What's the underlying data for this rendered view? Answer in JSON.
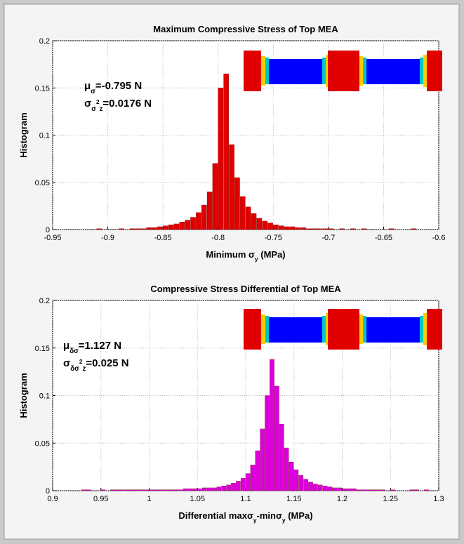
{
  "chart_data": [
    {
      "type": "histogram",
      "title": "Maximum Compressive Stress of Top MEA",
      "xlabel": [
        {
          "text": "Minimum σ"
        },
        {
          "sub": "y"
        },
        {
          "text": " (MPa)"
        }
      ],
      "ylabel": "Histogram",
      "annotations": [
        [
          {
            "text": "μ"
          },
          {
            "sub": "σ"
          },
          {
            "text": "=-0.795 N"
          }
        ],
        [
          {
            "text": "σ"
          },
          {
            "sub": "σ"
          },
          {
            "sup": "2"
          },
          {
            "sub": "z"
          },
          {
            "text": "=0.0176 N"
          }
        ]
      ],
      "bins": [
        -0.91,
        -0.905,
        -0.9,
        -0.895,
        -0.89,
        -0.885,
        -0.88,
        -0.875,
        -0.87,
        -0.865,
        -0.86,
        -0.855,
        -0.85,
        -0.845,
        -0.84,
        -0.835,
        -0.83,
        -0.825,
        -0.82,
        -0.815,
        -0.81,
        -0.805,
        -0.8,
        -0.795,
        -0.79,
        -0.785,
        -0.78,
        -0.775,
        -0.77,
        -0.765,
        -0.76,
        -0.755,
        -0.75,
        -0.745,
        -0.74,
        -0.735,
        -0.73,
        -0.725,
        -0.72,
        -0.715,
        -0.71,
        -0.705,
        -0.7,
        -0.695,
        -0.69,
        -0.685,
        -0.68,
        -0.675,
        -0.67,
        -0.665,
        -0.66,
        -0.655,
        -0.65,
        -0.645,
        -0.64,
        -0.635,
        -0.63,
        -0.625,
        -0.62
      ],
      "values": [
        0.001,
        0,
        0,
        0,
        0.001,
        0,
        0.001,
        0.001,
        0.001,
        0.002,
        0.002,
        0.003,
        0.004,
        0.005,
        0.006,
        0.008,
        0.01,
        0.013,
        0.018,
        0.026,
        0.04,
        0.07,
        0.15,
        0.165,
        0.09,
        0.055,
        0.035,
        0.024,
        0.017,
        0.012,
        0.009,
        0.007,
        0.005,
        0.004,
        0.003,
        0.003,
        0.002,
        0.002,
        0.001,
        0.001,
        0.001,
        0.001,
        0.001,
        0,
        0.001,
        0,
        0.001,
        0,
        0.001,
        0,
        0,
        0,
        0,
        0.001,
        0,
        0,
        0,
        0.001
      ],
      "color": "#e00000",
      "xlim": [
        -0.95,
        -0.6
      ],
      "xticks": [
        -0.95,
        -0.9,
        -0.85,
        -0.8,
        -0.75,
        -0.7,
        -0.65,
        -0.6
      ],
      "ylim": [
        0,
        0.2
      ],
      "yticks": [
        0,
        0.05,
        0.1,
        0.15,
        0.2
      ],
      "grid": true
    },
    {
      "type": "histogram",
      "title": "Compressive Stress Differential of Top MEA",
      "xlabel": [
        {
          "text": "Differential maxσ"
        },
        {
          "sub": "y"
        },
        {
          "text": "-minσ"
        },
        {
          "sub": "y"
        },
        {
          "text": " (MPa)"
        }
      ],
      "ylabel": "Histogram",
      "annotations": [
        [
          {
            "text": "μ"
          },
          {
            "sub": "δσ"
          },
          {
            "text": "=1.127 N"
          }
        ],
        [
          {
            "text": "σ"
          },
          {
            "sub": "δσ"
          },
          {
            "sup": "2"
          },
          {
            "sub": "z"
          },
          {
            "text": "=0.025 N"
          }
        ]
      ],
      "bins": [
        0.93,
        0.935,
        0.94,
        0.945,
        0.95,
        0.955,
        0.96,
        0.965,
        0.97,
        0.975,
        0.98,
        0.985,
        0.99,
        0.995,
        1.0,
        1.005,
        1.01,
        1.015,
        1.02,
        1.025,
        1.03,
        1.035,
        1.04,
        1.045,
        1.05,
        1.055,
        1.06,
        1.065,
        1.07,
        1.075,
        1.08,
        1.085,
        1.09,
        1.095,
        1.1,
        1.105,
        1.11,
        1.115,
        1.12,
        1.125,
        1.13,
        1.135,
        1.14,
        1.145,
        1.15,
        1.155,
        1.16,
        1.165,
        1.17,
        1.175,
        1.18,
        1.185,
        1.19,
        1.195,
        1.2,
        1.205,
        1.21,
        1.215,
        1.22,
        1.225,
        1.23,
        1.235,
        1.24,
        1.245,
        1.25,
        1.255,
        1.26,
        1.265,
        1.27,
        1.275,
        1.28,
        1.285,
        1.29
      ],
      "values": [
        0.001,
        0.001,
        0,
        0,
        0.001,
        0,
        0.001,
        0.001,
        0.001,
        0.001,
        0.001,
        0.001,
        0.001,
        0.001,
        0.001,
        0.001,
        0.001,
        0.001,
        0.001,
        0.001,
        0.001,
        0.002,
        0.002,
        0.002,
        0.002,
        0.003,
        0.003,
        0.003,
        0.004,
        0.005,
        0.006,
        0.008,
        0.01,
        0.013,
        0.018,
        0.027,
        0.042,
        0.065,
        0.1,
        0.138,
        0.11,
        0.07,
        0.045,
        0.03,
        0.022,
        0.016,
        0.012,
        0.009,
        0.007,
        0.006,
        0.005,
        0.004,
        0.003,
        0.003,
        0.002,
        0.002,
        0.002,
        0.001,
        0.001,
        0.001,
        0.001,
        0.001,
        0.001,
        0,
        0.001,
        0,
        0,
        0,
        0.001,
        0.001,
        0,
        0.001
      ],
      "color": "#dd00dd",
      "xlim": [
        0.9,
        1.3
      ],
      "xticks": [
        0.9,
        0.95,
        1,
        1.05,
        1.1,
        1.15,
        1.2,
        1.25,
        1.3
      ],
      "ylim": [
        0,
        0.2
      ],
      "yticks": [
        0,
        0.05,
        0.1,
        0.15,
        0.2
      ],
      "grid": true
    }
  ]
}
